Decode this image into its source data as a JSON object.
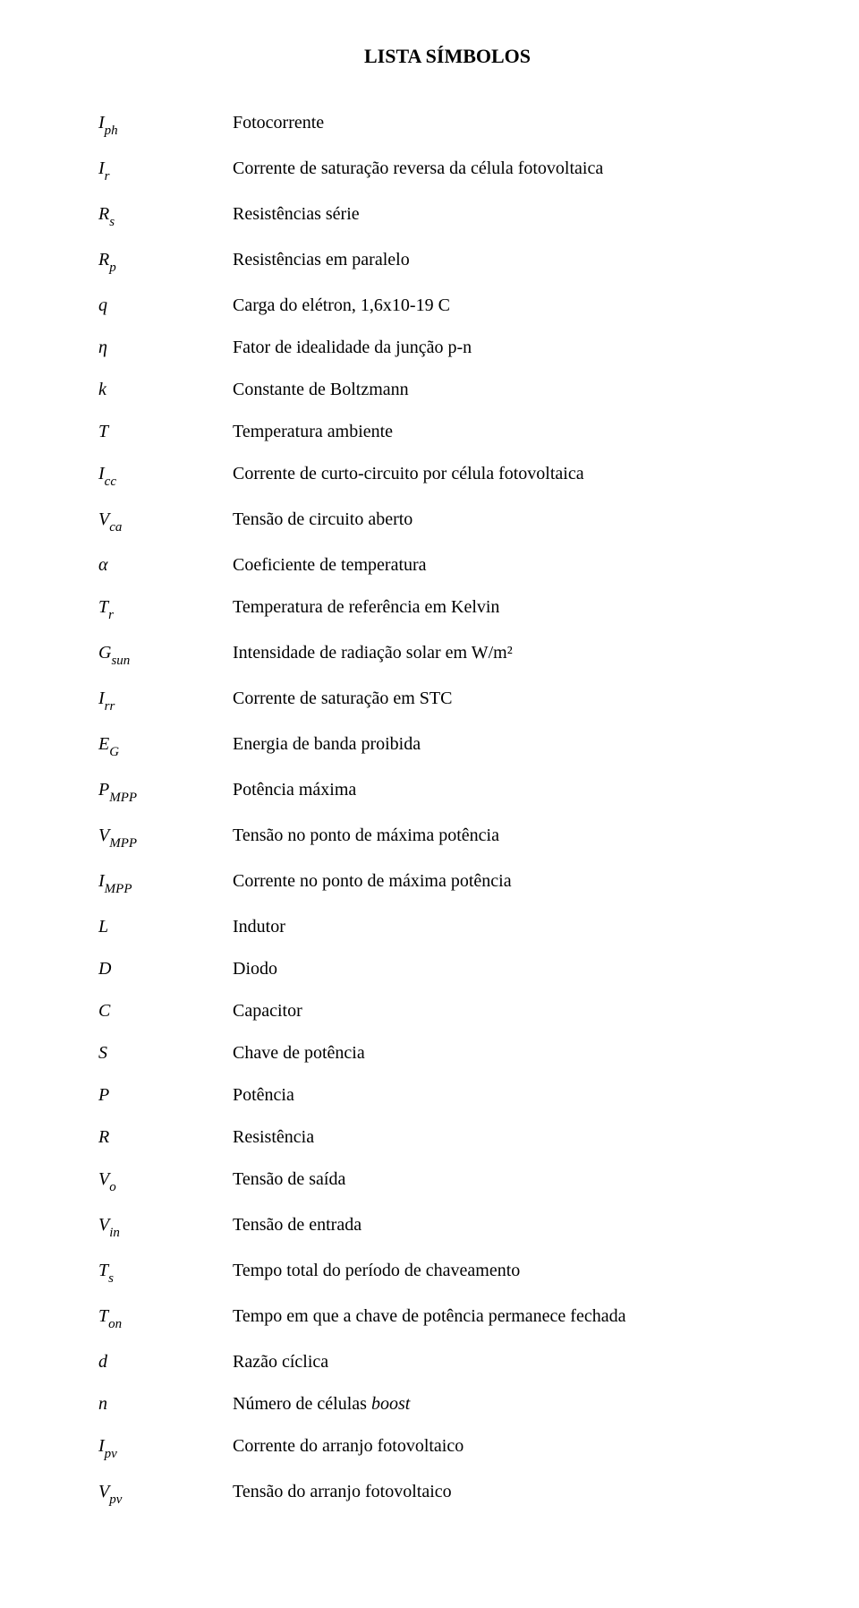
{
  "title": "LISTA SÍMBOLOS",
  "rows": [
    {
      "base": "I",
      "sub": "ph",
      "desc": "Fotocorrente"
    },
    {
      "base": "I",
      "sub": "r",
      "desc": "Corrente de saturação reversa da célula fotovoltaica"
    },
    {
      "base": "R",
      "sub": "s",
      "desc": "Resistências série"
    },
    {
      "base": "R",
      "sub": "p",
      "desc": "Resistências em paralelo"
    },
    {
      "base": "q",
      "sub": "",
      "desc": "Carga do elétron, 1,6x10-19 C"
    },
    {
      "base": "η",
      "sub": "",
      "desc": "Fator de idealidade da junção p-n"
    },
    {
      "base": "k",
      "sub": "",
      "desc": "Constante de Boltzmann"
    },
    {
      "base": "T",
      "sub": "",
      "desc": "Temperatura ambiente"
    },
    {
      "base": "I",
      "sub": "cc",
      "desc": "Corrente de curto-circuito por célula fotovoltaica"
    },
    {
      "base": "V",
      "sub": "ca",
      "desc": "Tensão de circuito aberto"
    },
    {
      "base": "α",
      "sub": "",
      "desc": "Coeficiente de temperatura"
    },
    {
      "base": "T",
      "sub": "r",
      "desc": "Temperatura de referência em Kelvin"
    },
    {
      "base": "G",
      "sub": "sun",
      "desc": "Intensidade de radiação solar em W/m²"
    },
    {
      "base": "I",
      "sub": "rr",
      "desc": "Corrente de saturação em STC"
    },
    {
      "base": "E",
      "sub": "G",
      "desc": "Energia de banda proibida"
    },
    {
      "base": "P",
      "sub": "MPP",
      "desc": "Potência máxima"
    },
    {
      "base": "V",
      "sub": "MPP",
      "desc": "Tensão no ponto de máxima potência"
    },
    {
      "base": "I",
      "sub": "MPP",
      "desc": "Corrente no ponto de máxima potência"
    },
    {
      "base": "L",
      "sub": "",
      "desc": "Indutor"
    },
    {
      "base": "D",
      "sub": "",
      "desc": "Diodo"
    },
    {
      "base": "C",
      "sub": "",
      "desc": "Capacitor"
    },
    {
      "base": "S",
      "sub": "",
      "desc": "Chave de potência"
    },
    {
      "base": "P",
      "sub": "",
      "desc": "Potência"
    },
    {
      "base": "R",
      "sub": "",
      "desc": "Resistência"
    },
    {
      "base": "V",
      "sub": "o",
      "desc": "Tensão de saída"
    },
    {
      "base": "V",
      "sub": "in",
      "desc": "Tensão de entrada"
    },
    {
      "base": "T",
      "sub": "s",
      "desc": "Tempo total do período de chaveamento"
    },
    {
      "base": "T",
      "sub": "on",
      "desc": "Tempo em que a chave de potência permanece fechada"
    },
    {
      "base": "d",
      "sub": "",
      "desc": "Razão cíclica"
    },
    {
      "base": "n",
      "sub": "",
      "desc_html": "Número de células <span class=\"ital\">boost</span>"
    },
    {
      "base": "I",
      "sub": "pv",
      "desc": "Corrente do arranjo fotovoltaico"
    },
    {
      "base": "V",
      "sub": "pv",
      "desc": "Tensão do arranjo fotovoltaico"
    }
  ]
}
